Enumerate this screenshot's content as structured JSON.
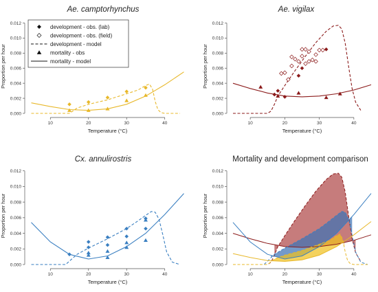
{
  "figure": {
    "x_label": "Temperature (°C)",
    "y_label": "Proportion per hour"
  },
  "legend": {
    "items": [
      {
        "label": "development - obs. (lab)",
        "marker": "diamond-filled"
      },
      {
        "label": "development - obs. (field)",
        "marker": "diamond-open"
      },
      {
        "label": "development - model",
        "marker": "dashed-line"
      },
      {
        "label": "mortality - obs",
        "marker": "triangle-filled"
      },
      {
        "label": "mortality - model",
        "marker": "solid-line"
      }
    ]
  },
  "chart_data": [
    {
      "id": "camp",
      "type": "line",
      "title": "Ae. camptorhynchus",
      "title_italic": true,
      "xlabel": "Temperature (°C)",
      "ylabel": "Proportion per hour",
      "xlim": [
        4,
        46
      ],
      "ylim": [
        0,
        0.0125
      ],
      "xticks": [
        10,
        20,
        30,
        40
      ],
      "yticks": [
        0.0,
        0.002,
        0.004,
        0.006,
        0.008,
        0.01,
        0.012
      ],
      "color": "#e8b82a",
      "series": [
        {
          "kind": "dev_model",
          "style": "dashed",
          "x": [
            5,
            15,
            17,
            20,
            25,
            30,
            33,
            35,
            36,
            36.8,
            37.5,
            38.2,
            39,
            40,
            42,
            44
          ],
          "y": [
            0,
            0,
            0.0007,
            0.0012,
            0.0018,
            0.0026,
            0.0031,
            0.0037,
            0.0039,
            0.0032,
            0.0016,
            0.0005,
            0.0001,
            0,
            0,
            0
          ]
        },
        {
          "kind": "mort_model",
          "style": "solid",
          "x": [
            5,
            10,
            15,
            20,
            25,
            30,
            35,
            40,
            45
          ],
          "y": [
            0.0014,
            0.0009,
            0.0005,
            0.0004,
            0.0006,
            0.0012,
            0.0023,
            0.0038,
            0.0055
          ]
        },
        {
          "kind": "dev_obs_lab",
          "marker": "diamond-filled",
          "x": [
            15,
            20,
            25,
            30,
            35
          ],
          "y": [
            0.0012,
            0.0015,
            0.0021,
            0.0029,
            0.0034
          ]
        },
        {
          "kind": "mort_obs",
          "marker": "triangle-filled",
          "x": [
            15,
            20,
            25,
            30,
            35
          ],
          "y": [
            0.0004,
            0.0004,
            0.0006,
            0.0017,
            0.0024
          ]
        }
      ]
    },
    {
      "id": "vig",
      "type": "line",
      "title": "Ae. vigilax",
      "title_italic": true,
      "xlabel": "Temperature (°C)",
      "ylabel": "Proportion per hour",
      "xlim": [
        4,
        46
      ],
      "ylim": [
        0,
        0.0125
      ],
      "xticks": [
        10,
        20,
        30,
        40
      ],
      "yticks": [
        0.0,
        0.002,
        0.004,
        0.006,
        0.008,
        0.01,
        0.012
      ],
      "color": "#8b1a1a",
      "series": [
        {
          "kind": "dev_model",
          "style": "dashed",
          "x": [
            5,
            15,
            16,
            17,
            18,
            20,
            23,
            26,
            29,
            32,
            34,
            35.5,
            36.5,
            37.5,
            38.5,
            39.5,
            40.5,
            42
          ],
          "y": [
            0,
            0,
            0.0003,
            0.0012,
            0.0023,
            0.0037,
            0.0057,
            0.0076,
            0.0094,
            0.0109,
            0.0116,
            0.0117,
            0.0112,
            0.0093,
            0.0062,
            0.0033,
            0.0015,
            0.0004
          ]
        },
        {
          "kind": "mort_model",
          "style": "solid",
          "x": [
            5,
            10,
            15,
            20,
            25,
            30,
            35,
            40,
            45
          ],
          "y": [
            0.004,
            0.0033,
            0.0027,
            0.0023,
            0.0022,
            0.0023,
            0.0026,
            0.0031,
            0.0038
          ]
        },
        {
          "kind": "dev_obs_lab",
          "marker": "diamond-filled",
          "x": [
            17,
            18,
            20,
            24,
            25,
            32
          ],
          "y": [
            0.0025,
            0.003,
            0.0022,
            0.005,
            0.006,
            0.0085
          ]
        },
        {
          "kind": "dev_obs_field",
          "marker": "diamond-open",
          "x": [
            19,
            20,
            21,
            22,
            23,
            24,
            25,
            26,
            27,
            28,
            29,
            30,
            31,
            22,
            25,
            27,
            29,
            26
          ],
          "y": [
            0.0053,
            0.0054,
            0.0045,
            0.0063,
            0.0072,
            0.0069,
            0.0085,
            0.0085,
            0.0069,
            0.0071,
            0.0069,
            0.0084,
            0.0084,
            0.0075,
            0.0076,
            0.0082,
            0.0078,
            0.0066
          ]
        },
        {
          "kind": "mort_obs",
          "marker": "triangle-filled",
          "x": [
            13,
            18,
            24,
            32,
            36
          ],
          "y": [
            0.0035,
            0.0023,
            0.0027,
            0.0021,
            0.0026
          ]
        }
      ]
    },
    {
      "id": "cx",
      "type": "line",
      "title": "Cx. annulirostris",
      "title_italic": true,
      "xlabel": "Temperature (°C)",
      "ylabel": "Proportion per hour",
      "xlim": [
        4,
        46
      ],
      "ylim": [
        0,
        0.0125
      ],
      "xticks": [
        10,
        20,
        30,
        40
      ],
      "yticks": [
        0.0,
        0.002,
        0.004,
        0.006,
        0.008,
        0.01,
        0.012
      ],
      "color": "#3a7fc1",
      "series": [
        {
          "kind": "dev_model",
          "style": "dashed",
          "x": [
            5,
            14,
            17,
            20,
            25,
            30,
            33,
            35,
            36.5,
            37.5,
            38.5,
            39.5,
            40.5,
            42,
            44
          ],
          "y": [
            0,
            0,
            0.0013,
            0.0021,
            0.0033,
            0.0046,
            0.0056,
            0.0063,
            0.0068,
            0.0067,
            0.0058,
            0.0038,
            0.0016,
            0.0003,
            0
          ]
        },
        {
          "kind": "mort_model",
          "style": "solid",
          "x": [
            5,
            10,
            15,
            20,
            25,
            30,
            35,
            40,
            45
          ],
          "y": [
            0.0054,
            0.0029,
            0.0013,
            0.0007,
            0.0011,
            0.0023,
            0.004,
            0.0064,
            0.0091
          ]
        },
        {
          "kind": "dev_obs_lab",
          "marker": "diamond-filled",
          "x": [
            15,
            20,
            20,
            25,
            25,
            30,
            30,
            35,
            35
          ],
          "y": [
            0.0013,
            0.0022,
            0.0029,
            0.0025,
            0.0035,
            0.0036,
            0.0046,
            0.0046,
            0.0059
          ]
        },
        {
          "kind": "mort_obs",
          "marker": "triangle-filled",
          "x": [
            20,
            20,
            25,
            25,
            30,
            30,
            35,
            35
          ],
          "y": [
            0.0012,
            0.0015,
            0.0009,
            0.0017,
            0.0022,
            0.0028,
            0.0031,
            0.0057
          ]
        }
      ]
    },
    {
      "id": "cmp",
      "type": "area",
      "title": "Mortality and development comparison",
      "title_italic": false,
      "xlabel": "Temperature (°C)",
      "ylabel": "Proportion per hour",
      "xlim": [
        4,
        46
      ],
      "ylim": [
        0,
        0.0125
      ],
      "xticks": [
        10,
        20,
        30,
        40
      ],
      "yticks": [
        0.0,
        0.002,
        0.004,
        0.006,
        0.008,
        0.01,
        0.012
      ],
      "species": [
        {
          "name": "Ae. vigilax",
          "color": "#8b1a1a",
          "fill": "#b04a4a",
          "dev": {
            "x": [
              5,
              15,
              16,
              17,
              18,
              20,
              23,
              26,
              29,
              32,
              34,
              35.5,
              36.5,
              37.5,
              38.5,
              39.5,
              40.5,
              42
            ],
            "y": [
              0,
              0,
              0.0003,
              0.0012,
              0.0023,
              0.0037,
              0.0057,
              0.0076,
              0.0094,
              0.0109,
              0.0116,
              0.0117,
              0.0112,
              0.0093,
              0.0062,
              0.0033,
              0.0015,
              0.0004
            ]
          },
          "mort": {
            "x": [
              5,
              10,
              15,
              20,
              25,
              30,
              35,
              40,
              45
            ],
            "y": [
              0.004,
              0.0033,
              0.0027,
              0.0023,
              0.0022,
              0.0023,
              0.0026,
              0.0031,
              0.0038
            ]
          },
          "fill_range": [
            17,
            40.5
          ]
        },
        {
          "name": "Cx. annulirostris",
          "color": "#3a7fc1",
          "fill": "#3f73b5",
          "dev": {
            "x": [
              5,
              14,
              17,
              20,
              25,
              30,
              33,
              35,
              36.5,
              37.5,
              38.5,
              39.5,
              40.5,
              42,
              44
            ],
            "y": [
              0,
              0,
              0.0013,
              0.0021,
              0.0033,
              0.0046,
              0.0056,
              0.0063,
              0.0068,
              0.0067,
              0.0058,
              0.0038,
              0.0016,
              0.0003,
              0
            ]
          },
          "mort": {
            "x": [
              5,
              10,
              15,
              20,
              25,
              30,
              35,
              40,
              45
            ],
            "y": [
              0.0054,
              0.0029,
              0.0013,
              0.0007,
              0.0011,
              0.0023,
              0.004,
              0.0064,
              0.0091
            ]
          },
          "fill_range": [
            16,
            39.5
          ]
        },
        {
          "name": "Ae. camptorhynchus",
          "color": "#e8b82a",
          "fill": "#f0c020",
          "dev": {
            "x": [
              5,
              15,
              17,
              20,
              25,
              30,
              33,
              35,
              36,
              36.8,
              37.5,
              38.2,
              39,
              40,
              42,
              44
            ],
            "y": [
              0,
              0,
              0.0007,
              0.0012,
              0.0018,
              0.0026,
              0.0031,
              0.0037,
              0.0039,
              0.0032,
              0.0016,
              0.0005,
              0.0001,
              0,
              0,
              0
            ]
          },
          "mort": {
            "x": [
              5,
              10,
              15,
              20,
              25,
              30,
              35,
              40,
              45
            ],
            "y": [
              0.0014,
              0.0009,
              0.0005,
              0.0004,
              0.0006,
              0.0012,
              0.0023,
              0.0038,
              0.0055
            ]
          },
          "fill_range": [
            16,
            37.2
          ]
        }
      ]
    }
  ]
}
